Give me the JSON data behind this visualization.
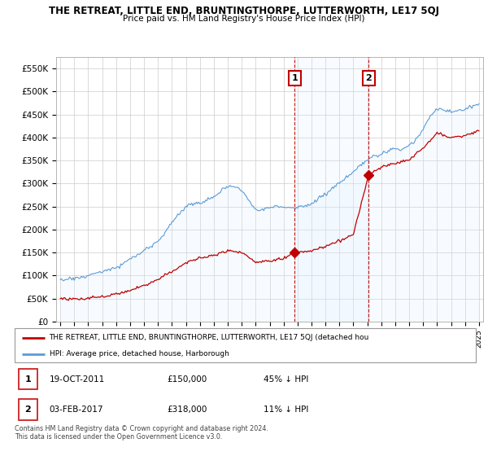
{
  "title": "THE RETREAT, LITTLE END, BRUNTINGTHORPE, LUTTERWORTH, LE17 5QJ",
  "subtitle": "Price paid vs. HM Land Registry's House Price Index (HPI)",
  "ylabel_ticks": [
    "£0",
    "£50K",
    "£100K",
    "£150K",
    "£200K",
    "£250K",
    "£300K",
    "£350K",
    "£400K",
    "£450K",
    "£500K",
    "£550K"
  ],
  "ytick_vals": [
    0,
    50000,
    100000,
    150000,
    200000,
    250000,
    300000,
    350000,
    400000,
    450000,
    500000,
    550000
  ],
  "ylim": [
    0,
    575000
  ],
  "hpi_color": "#5b9bd5",
  "property_color": "#c00000",
  "point1_x": 2011.8,
  "point1_y": 150000,
  "point1_label": "1",
  "point2_x": 2017.1,
  "point2_y": 318000,
  "point2_label": "2",
  "legend_property": "THE RETREAT, LITTLE END, BRUNTINGTHORPE, LUTTERWORTH, LE17 5QJ (detached hou",
  "legend_hpi": "HPI: Average price, detached house, Harborough",
  "note1_num": "1",
  "note1_date": "19-OCT-2011",
  "note1_price": "£150,000",
  "note1_pct": "45% ↓ HPI",
  "note2_num": "2",
  "note2_date": "03-FEB-2017",
  "note2_price": "£318,000",
  "note2_pct": "11% ↓ HPI",
  "footer": "Contains HM Land Registry data © Crown copyright and database right 2024.\nThis data is licensed under the Open Government Licence v3.0.",
  "background_color": "#ffffff",
  "hpi_shade_color": "#ddeeff",
  "xmin": 1994.7,
  "xmax": 2025.3
}
